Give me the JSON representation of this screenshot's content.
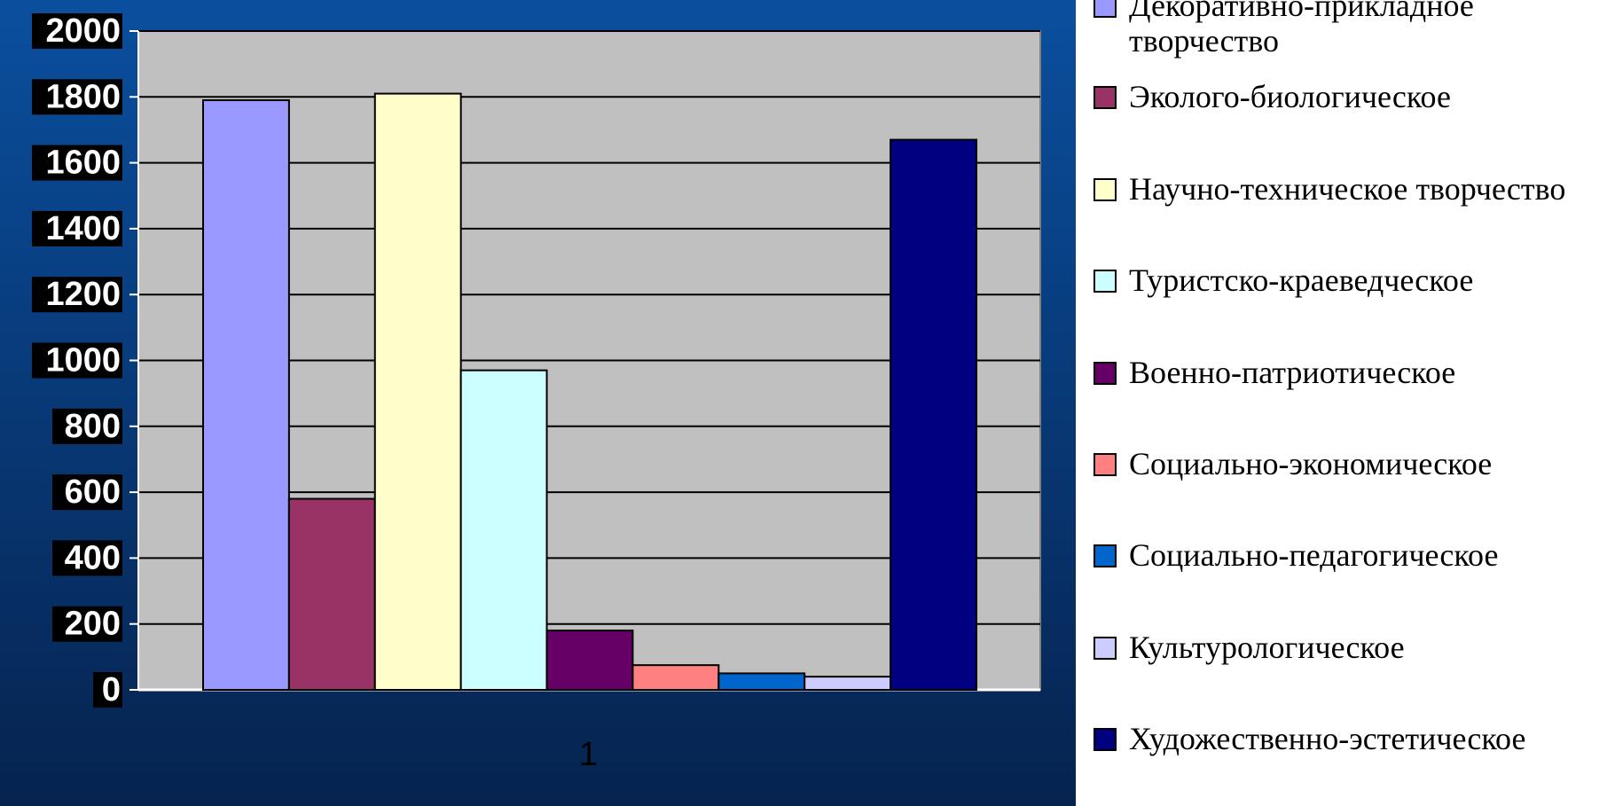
{
  "chart_data": {
    "type": "bar",
    "categories": [
      "1"
    ],
    "series": [
      {
        "name": "Декоративно-прикладное творчество",
        "color": "#9999ff",
        "values": [
          1790
        ]
      },
      {
        "name": "Эколого-биологическое",
        "color": "#993366",
        "values": [
          580
        ]
      },
      {
        "name": "Научно-техническое творчество",
        "color": "#ffffcc",
        "values": [
          1810
        ]
      },
      {
        "name": "Туристско-краеведческое",
        "color": "#ccffff",
        "values": [
          970
        ]
      },
      {
        "name": "Военно-патриотическое",
        "color": "#660066",
        "values": [
          180
        ]
      },
      {
        "name": "Социально-экономическое",
        "color": "#ff8080",
        "values": [
          75
        ]
      },
      {
        "name": "Социально-педагогическое",
        "color": "#0066cc",
        "values": [
          50
        ]
      },
      {
        "name": "Культурологическое",
        "color": "#ccccff",
        "values": [
          40
        ]
      },
      {
        "name": "Художественно-эстетическое",
        "color": "#000080",
        "values": [
          1670
        ]
      }
    ],
    "ylim": [
      0,
      2000
    ],
    "yticks": [
      0,
      200,
      400,
      600,
      800,
      1000,
      1200,
      1400,
      1600,
      1800,
      2000
    ],
    "grid": true,
    "legend": "right"
  }
}
